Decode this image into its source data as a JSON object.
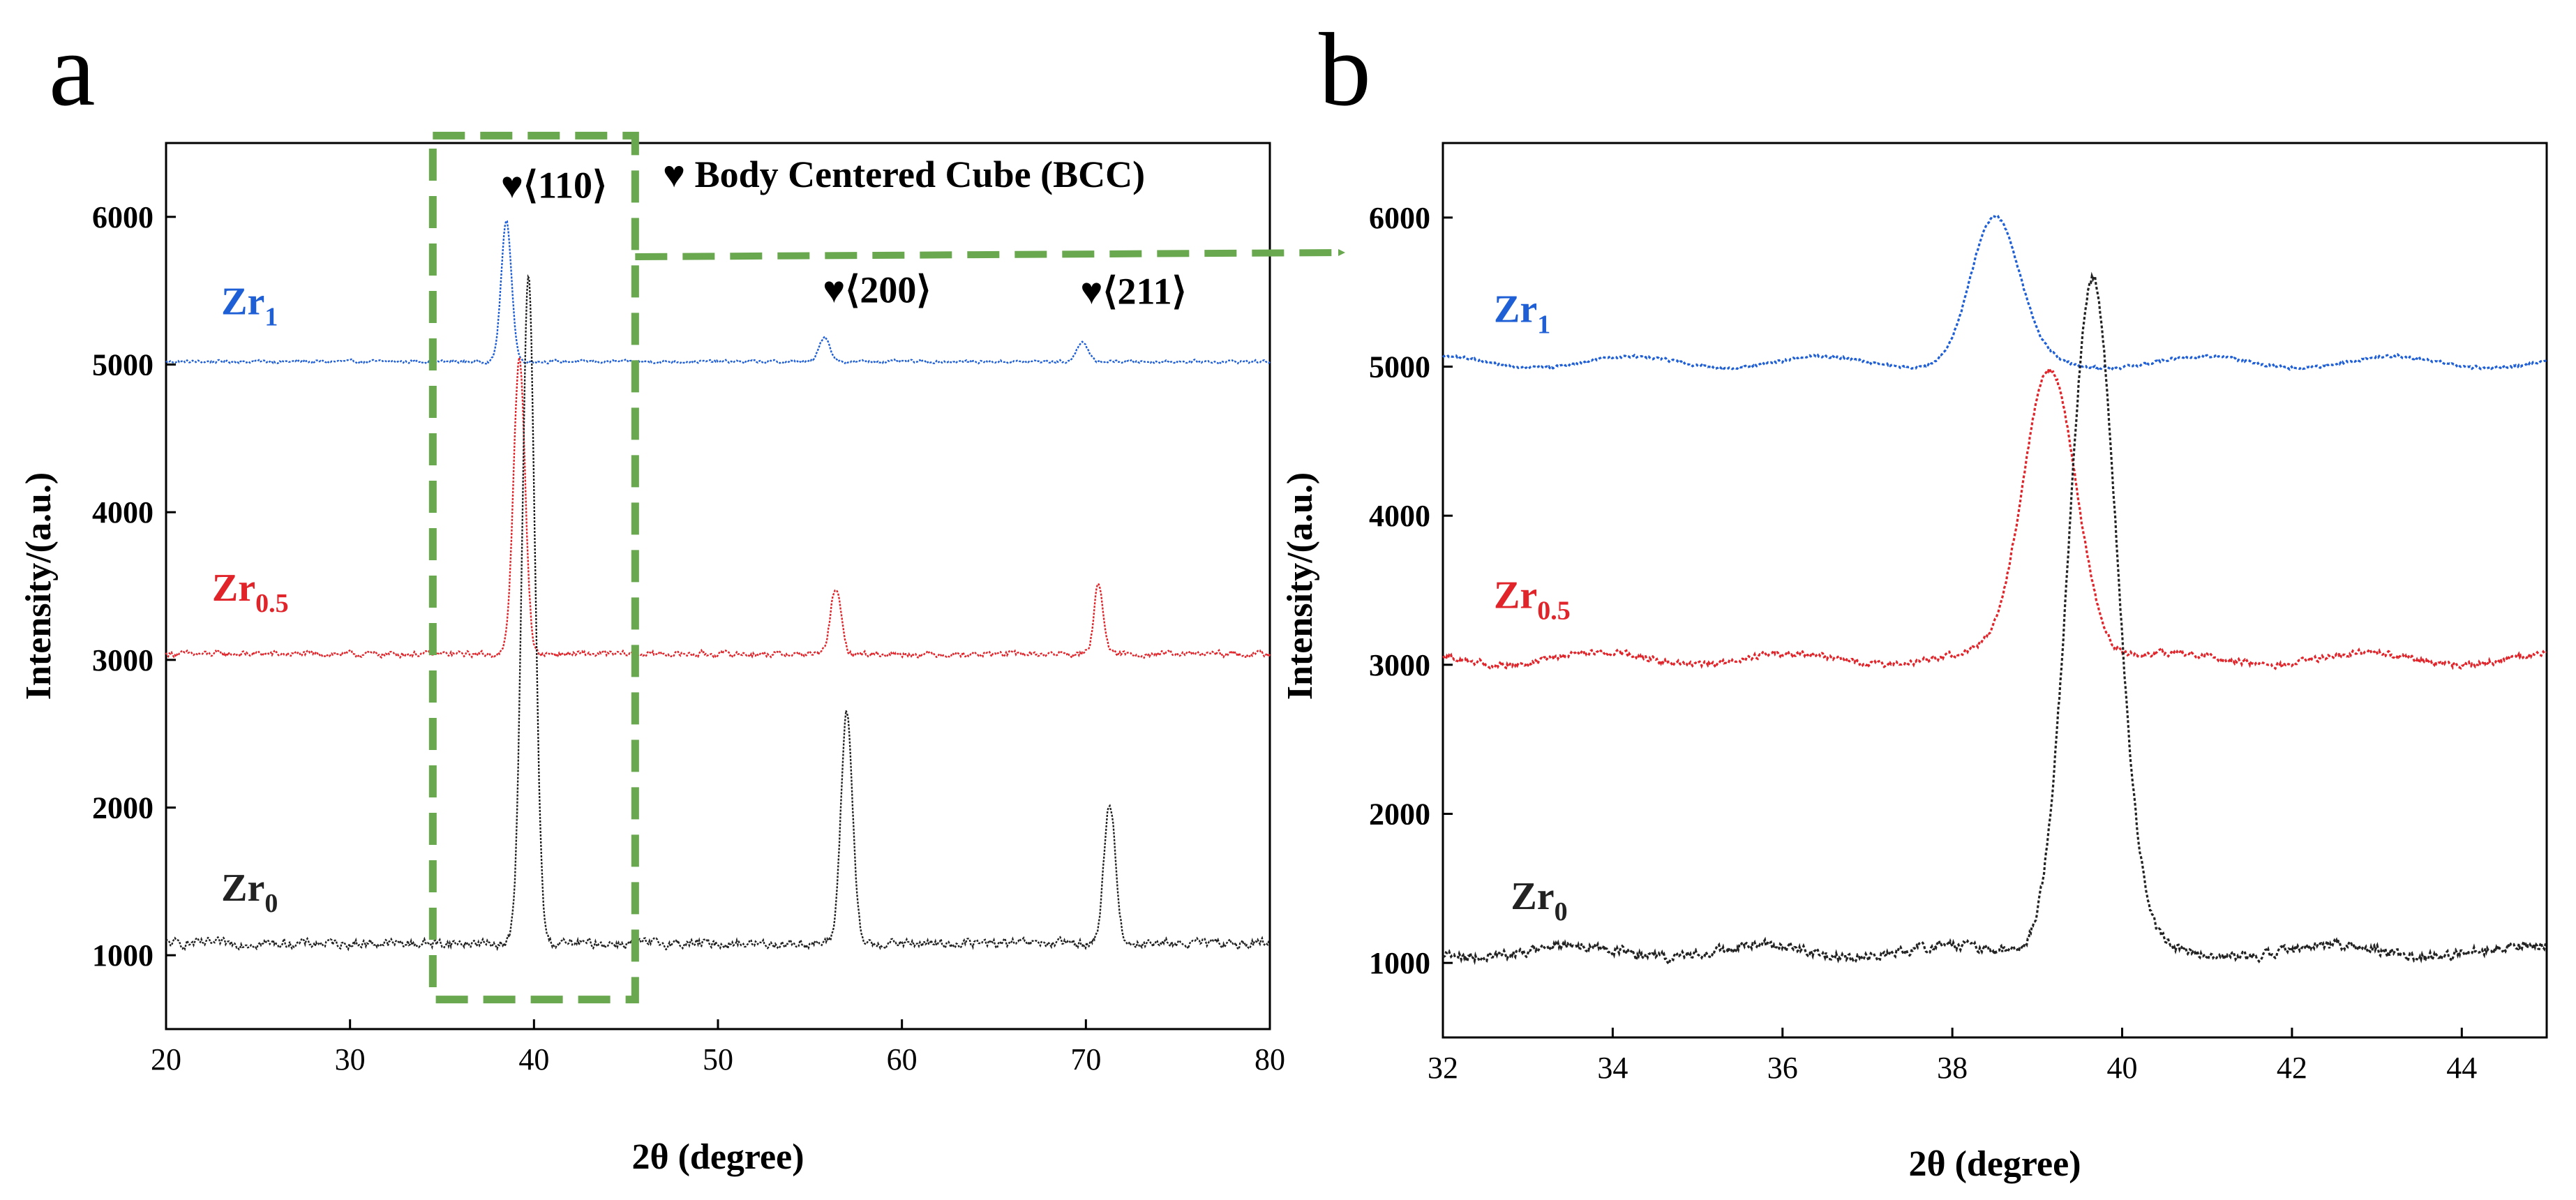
{
  "panel_a": {
    "letter": "a"
  },
  "panel_b": {
    "letter": "b"
  },
  "legend_note": {
    "symbol": "♥",
    "text": "Body Centered Cube (BCC)"
  },
  "colors": {
    "Zr1": "#1f5fd6",
    "Zr0.5": "#e0242a",
    "Zr0": "#222222",
    "zoom_box": "#6aa84f"
  },
  "chart_data": [
    {
      "panel": "a",
      "type": "line",
      "title": "",
      "xlabel": "2θ (degree)",
      "ylabel": "Intensity/(a.u.)",
      "xlim": [
        20,
        80
      ],
      "ylim": [
        500,
        6500
      ],
      "xticks": [
        20,
        30,
        40,
        50,
        60,
        70,
        80
      ],
      "xtick_labels": [
        "20",
        "30",
        "40",
        "50",
        "60",
        "70",
        "80"
      ],
      "yticks": [
        1000,
        2000,
        3000,
        4000,
        5000,
        6000
      ],
      "ytick_labels": [
        "1000",
        "2000",
        "3000",
        "4000",
        "5000",
        "6000"
      ],
      "series": [
        {
          "name": "Zr1",
          "label_main": "Zr",
          "label_sub": "1",
          "color": "#1f5fd6",
          "baseline": 5020,
          "label_at": [
            23,
            5340
          ],
          "peaks": [
            [
              38.5,
              950,
              0.45
            ],
            [
              55.8,
              170,
              0.45
            ],
            [
              69.8,
              140,
              0.45
            ]
          ]
        },
        {
          "name": "Zr0.5",
          "label_main": "Zr",
          "label_sub": "0.5",
          "color": "#e0242a",
          "baseline": 3040,
          "label_at": [
            22.5,
            3400
          ],
          "peaks": [
            [
              39.2,
              2000,
              0.5
            ],
            [
              56.4,
              450,
              0.45
            ],
            [
              70.7,
              480,
              0.4
            ]
          ]
        },
        {
          "name": "Zr0",
          "label_main": "Zr",
          "label_sub": "0",
          "color": "#222222",
          "baseline": 1080,
          "label_at": [
            23,
            1370
          ],
          "peaks": [
            [
              39.7,
              4520,
              0.55
            ],
            [
              57.0,
              1570,
              0.5
            ],
            [
              71.3,
              950,
              0.5
            ]
          ]
        }
      ],
      "annotations": [
        {
          "marker": "♥",
          "text": "⟨110⟩",
          "at": [
            38.2,
            6130
          ]
        },
        {
          "marker": "♥",
          "text": "⟨200⟩",
          "at": [
            55.7,
            5420
          ]
        },
        {
          "marker": "♥",
          "text": "⟨211⟩",
          "at": [
            69.7,
            5410
          ]
        }
      ],
      "zoom_region": {
        "x_from": 34.5,
        "x_to": 45.5,
        "y_from": 700,
        "y_to": 6550
      }
    },
    {
      "panel": "b",
      "type": "line",
      "title": "",
      "xlabel": "2θ (degree)",
      "ylabel": "Intensity/(a.u.)",
      "xlim": [
        32,
        45
      ],
      "ylim": [
        500,
        6500
      ],
      "xticks": [
        32,
        34,
        36,
        38,
        40,
        42,
        44
      ],
      "xtick_labels": [
        "32",
        "34",
        "36",
        "38",
        "40",
        "42",
        "44"
      ],
      "yticks": [
        1000,
        2000,
        3000,
        4000,
        5000,
        6000
      ],
      "ytick_labels": [
        "1000",
        "2000",
        "3000",
        "4000",
        "5000",
        "6000"
      ],
      "series": [
        {
          "name": "Zr1",
          "label_main": "Zr",
          "label_sub": "1",
          "color": "#1f5fd6",
          "baseline": 5030,
          "label_at": [
            32.6,
            5300
          ],
          "peaks": [
            [
              38.5,
              950,
              0.45
            ]
          ]
        },
        {
          "name": "Zr0.5",
          "label_main": "Zr",
          "label_sub": "0.5",
          "color": "#e0242a",
          "baseline": 3040,
          "label_at": [
            32.6,
            3380
          ],
          "peaks": [
            [
              39.15,
              1970,
              0.5
            ]
          ]
        },
        {
          "name": "Zr0",
          "label_main": "Zr",
          "label_sub": "0",
          "color": "#222222",
          "baseline": 1080,
          "label_at": [
            32.8,
            1360
          ],
          "peaks": [
            [
              39.65,
              4520,
              0.45
            ]
          ]
        }
      ]
    }
  ]
}
